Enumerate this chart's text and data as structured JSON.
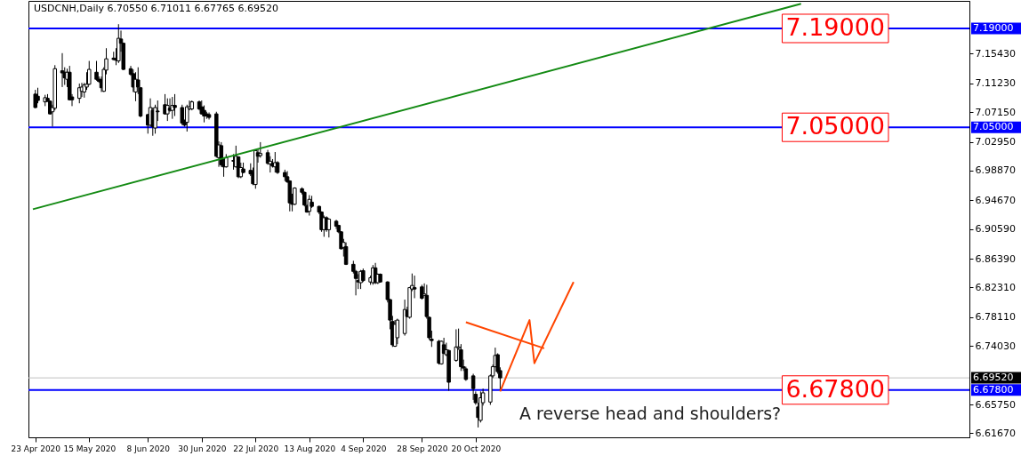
{
  "chart_data": {
    "type": "candlestick",
    "title": "USDCNH,Daily  6.70550 6.71011 6.67765 6.69520",
    "x": [
      "2020-04-23",
      "2020-04-24",
      "2020-04-27",
      "2020-04-28",
      "2020-04-29",
      "2020-04-30",
      "2020-05-01",
      "2020-05-04",
      "2020-05-05",
      "2020-05-06",
      "2020-05-07",
      "2020-05-08",
      "2020-05-11",
      "2020-05-12",
      "2020-05-13",
      "2020-05-14",
      "2020-05-15",
      "2020-05-18",
      "2020-05-19",
      "2020-05-20",
      "2020-05-21",
      "2020-05-22",
      "2020-05-25",
      "2020-05-26",
      "2020-05-27",
      "2020-05-28",
      "2020-05-29",
      "2020-06-01",
      "2020-06-02",
      "2020-06-03",
      "2020-06-04",
      "2020-06-05",
      "2020-06-08",
      "2020-06-09",
      "2020-06-10",
      "2020-06-11",
      "2020-06-12",
      "2020-06-15",
      "2020-06-16",
      "2020-06-17",
      "2020-06-18",
      "2020-06-19",
      "2020-06-22",
      "2020-06-23",
      "2020-06-24",
      "2020-06-25",
      "2020-06-26",
      "2020-06-29",
      "2020-06-30",
      "2020-07-01",
      "2020-07-02",
      "2020-07-03",
      "2020-07-06",
      "2020-07-07",
      "2020-07-08",
      "2020-07-09",
      "2020-07-10",
      "2020-07-13",
      "2020-07-14",
      "2020-07-15",
      "2020-07-16",
      "2020-07-17",
      "2020-07-20",
      "2020-07-21",
      "2020-07-22",
      "2020-07-23",
      "2020-07-24",
      "2020-07-27",
      "2020-07-28",
      "2020-07-29",
      "2020-07-30",
      "2020-07-31",
      "2020-08-03",
      "2020-08-04",
      "2020-08-05",
      "2020-08-06",
      "2020-08-07",
      "2020-08-10",
      "2020-08-11",
      "2020-08-12",
      "2020-08-13",
      "2020-08-14",
      "2020-08-17",
      "2020-08-18",
      "2020-08-19",
      "2020-08-20",
      "2020-08-21",
      "2020-08-24",
      "2020-08-25",
      "2020-08-26",
      "2020-08-27",
      "2020-08-28",
      "2020-08-31",
      "2020-09-01",
      "2020-09-02",
      "2020-09-03",
      "2020-09-04",
      "2020-09-07",
      "2020-09-08",
      "2020-09-09",
      "2020-09-10",
      "2020-09-11",
      "2020-09-14",
      "2020-09-15",
      "2020-09-16",
      "2020-09-17",
      "2020-09-18",
      "2020-09-21",
      "2020-09-22",
      "2020-09-23",
      "2020-09-24",
      "2020-09-25",
      "2020-09-28",
      "2020-09-29",
      "2020-09-30",
      "2020-10-01",
      "2020-10-02",
      "2020-10-05",
      "2020-10-06",
      "2020-10-07",
      "2020-10-08",
      "2020-10-09",
      "2020-10-12",
      "2020-10-13",
      "2020-10-14",
      "2020-10-15",
      "2020-10-16",
      "2020-10-19",
      "2020-10-20",
      "2020-10-21",
      "2020-10-22",
      "2020-10-23",
      "2020-10-26",
      "2020-10-27",
      "2020-10-28",
      "2020-10-29",
      "2020-10-30"
    ],
    "ohlc": [
      [
        7.097,
        7.103,
        7.077,
        7.078
      ],
      [
        7.094,
        7.106,
        7.084,
        7.088
      ],
      [
        7.086,
        7.096,
        7.08,
        7.092
      ],
      [
        7.091,
        7.097,
        7.086,
        7.087
      ],
      [
        7.087,
        7.088,
        7.068,
        7.069
      ],
      [
        7.072,
        7.082,
        7.051,
        7.078
      ],
      [
        7.077,
        7.138,
        7.074,
        7.133
      ],
      [
        7.13,
        7.155,
        7.107,
        7.127
      ],
      [
        7.128,
        7.135,
        7.11,
        7.12
      ],
      [
        7.118,
        7.133,
        7.107,
        7.128
      ],
      [
        7.128,
        7.137,
        7.088,
        7.089
      ],
      [
        7.093,
        7.097,
        7.08,
        7.089
      ],
      [
        7.091,
        7.112,
        7.084,
        7.106
      ],
      [
        7.101,
        7.113,
        7.093,
        7.107
      ],
      [
        7.1,
        7.113,
        7.092,
        7.11
      ],
      [
        7.107,
        7.128,
        7.103,
        7.111
      ],
      [
        7.111,
        7.144,
        7.11,
        7.132
      ],
      [
        7.128,
        7.144,
        7.116,
        7.118
      ],
      [
        7.118,
        7.122,
        7.113,
        7.115
      ],
      [
        7.118,
        7.122,
        7.1,
        7.106
      ],
      [
        7.101,
        7.135,
        7.1,
        7.132
      ],
      [
        7.131,
        7.162,
        7.125,
        7.147
      ],
      [
        7.148,
        7.157,
        7.145,
        7.146
      ],
      [
        7.147,
        7.162,
        7.138,
        7.145
      ],
      [
        7.144,
        7.196,
        7.141,
        7.176
      ],
      [
        7.175,
        7.187,
        7.157,
        7.169
      ],
      [
        7.169,
        7.17,
        7.131,
        7.132
      ],
      [
        7.133,
        7.137,
        7.123,
        7.125
      ],
      [
        7.126,
        7.132,
        7.1,
        7.107
      ],
      [
        7.1,
        7.128,
        7.087,
        7.118
      ],
      [
        7.117,
        7.135,
        7.097,
        7.107
      ],
      [
        7.106,
        7.107,
        7.064,
        7.066
      ],
      [
        7.068,
        7.069,
        7.041,
        7.053
      ],
      [
        7.053,
        7.091,
        7.051,
        7.078
      ],
      [
        7.074,
        7.078,
        7.038,
        7.051
      ],
      [
        7.049,
        7.082,
        7.041,
        7.078
      ],
      [
        7.073,
        7.088,
        7.059,
        7.072
      ],
      [
        7.082,
        7.097,
        7.068,
        7.069
      ],
      [
        7.069,
        7.091,
        7.059,
        7.081
      ],
      [
        7.077,
        7.091,
        7.072,
        7.074
      ],
      [
        7.074,
        7.093,
        7.062,
        7.081
      ],
      [
        7.081,
        7.097,
        7.066,
        7.078
      ],
      [
        7.078,
        7.082,
        7.053,
        7.056
      ],
      [
        7.059,
        7.061,
        7.051,
        7.053
      ],
      [
        7.057,
        7.082,
        7.044,
        7.079
      ],
      [
        7.076,
        7.088,
        7.074,
        7.079
      ],
      [
        7.076,
        7.088,
        7.074,
        7.086
      ],
      [
        7.086,
        7.088,
        7.074,
        7.076
      ],
      [
        7.079,
        7.088,
        7.068,
        7.069
      ],
      [
        7.074,
        7.081,
        7.057,
        7.066
      ],
      [
        7.069,
        7.072,
        7.062,
        7.066
      ],
      [
        7.068,
        7.071,
        7.061,
        7.064
      ],
      [
        7.069,
        7.072,
        7.007,
        7.009
      ],
      [
        7.007,
        7.03,
        6.994,
        7.025
      ],
      [
        7.024,
        7.029,
        6.994,
        6.997
      ],
      [
        6.997,
        7.005,
        6.98,
        6.994
      ],
      [
        6.994,
        7.012,
        6.993,
        7.007
      ],
      [
        7.003,
        7.012,
        6.99,
        7.002
      ],
      [
        6.994,
        7.024,
        6.993,
        7.009
      ],
      [
        7.008,
        7.009,
        6.978,
        6.98
      ],
      [
        6.98,
        7.0,
        6.978,
        6.993
      ],
      [
        6.991,
        7.0,
        6.985,
        6.986
      ],
      [
        6.989,
        6.999,
        6.981,
        6.984
      ],
      [
        6.986,
        6.993,
        6.968,
        6.97
      ],
      [
        6.969,
        7.018,
        6.963,
        7.017
      ],
      [
        7.014,
        7.019,
        7.0,
        7.009
      ],
      [
        7.01,
        7.029,
        7.007,
        7.013
      ],
      [
        7.014,
        7.018,
        6.997,
        6.999
      ],
      [
        6.998,
        7.009,
        6.986,
        7.002
      ],
      [
        6.999,
        7.005,
        6.993,
        6.995
      ],
      [
        6.994,
        7.015,
        6.986,
        7.0
      ],
      [
        7.0,
        7.002,
        6.984,
        6.986
      ],
      [
        6.986,
        6.99,
        6.974,
        6.98
      ],
      [
        6.98,
        6.988,
        6.971,
        6.973
      ],
      [
        6.974,
        6.975,
        6.931,
        6.943
      ],
      [
        6.943,
        6.956,
        6.931,
        6.941
      ],
      [
        6.941,
        6.965,
        6.94,
        6.964
      ],
      [
        6.963,
        6.965,
        6.955,
        6.958
      ],
      [
        6.958,
        6.959,
        6.938,
        6.94
      ],
      [
        6.939,
        6.941,
        6.929,
        6.93
      ],
      [
        6.931,
        6.954,
        6.925,
        6.948
      ],
      [
        6.944,
        6.953,
        6.936,
        6.938
      ],
      [
        6.938,
        6.939,
        6.927,
        6.93
      ],
      [
        6.93,
        6.931,
        6.902,
        6.905
      ],
      [
        6.905,
        6.925,
        6.895,
        6.922
      ],
      [
        6.922,
        6.924,
        6.902,
        6.905
      ],
      [
        6.905,
        6.921,
        6.894,
        6.92
      ],
      [
        6.917,
        6.919,
        6.906,
        6.91
      ],
      [
        6.911,
        6.912,
        6.9,
        6.902
      ],
      [
        6.902,
        6.903,
        6.877,
        6.878
      ],
      [
        6.88,
        6.892,
        6.867,
        6.887
      ],
      [
        6.881,
        6.887,
        6.855,
        6.856
      ],
      [
        6.856,
        6.861,
        6.843,
        6.846
      ],
      [
        6.846,
        6.848,
        6.812,
        6.836
      ],
      [
        6.833,
        6.842,
        6.821,
        6.831
      ],
      [
        6.83,
        6.848,
        6.821,
        6.846
      ],
      [
        6.847,
        6.85,
        6.831,
        6.833
      ],
      [
        6.831,
        6.84,
        6.827,
        6.837
      ],
      [
        6.83,
        6.855,
        6.827,
        6.851
      ],
      [
        6.851,
        6.858,
        6.828,
        6.83
      ],
      [
        6.83,
        6.843,
        6.828,
        6.842
      ],
      [
        6.842,
        6.843,
        6.83,
        6.831
      ],
      [
        6.831,
        6.832,
        6.802,
        6.806
      ],
      [
        6.806,
        6.807,
        6.764,
        6.777
      ],
      [
        6.775,
        6.783,
        6.739,
        6.742
      ],
      [
        6.74,
        6.777,
        6.739,
        6.771
      ],
      [
        6.752,
        6.779,
        6.743,
        6.777
      ],
      [
        6.758,
        6.806,
        6.755,
        6.792
      ],
      [
        6.791,
        6.796,
        6.781,
        6.782
      ],
      [
        6.781,
        6.824,
        6.779,
        6.823
      ],
      [
        6.821,
        6.843,
        6.818,
        6.826
      ],
      [
        6.823,
        6.84,
        6.808,
        6.821
      ],
      [
        6.824,
        6.827,
        6.806,
        6.808
      ],
      [
        6.812,
        6.829,
        6.811,
        6.814
      ],
      [
        6.812,
        6.827,
        6.779,
        6.782
      ],
      [
        6.781,
        6.782,
        6.749,
        6.752
      ],
      [
        6.75,
        6.762,
        6.739,
        6.748
      ],
      [
        6.747,
        6.749,
        6.714,
        6.716
      ],
      [
        6.715,
        6.748,
        6.714,
        6.747
      ],
      [
        6.742,
        6.752,
        6.729,
        6.73
      ],
      [
        6.728,
        6.745,
        6.726,
        6.735
      ],
      [
        6.734,
        6.735,
        6.677,
        6.689
      ],
      [
        6.72,
        6.764,
        6.718,
        6.739
      ],
      [
        6.737,
        6.765,
        6.735,
        6.739
      ],
      [
        6.735,
        6.743,
        6.705,
        6.711
      ],
      [
        6.711,
        6.721,
        6.705,
        6.709
      ],
      [
        6.708,
        6.711,
        6.691,
        6.693
      ],
      [
        6.698,
        6.701,
        6.664,
        6.68
      ],
      [
        6.672,
        6.676,
        6.657,
        6.66
      ],
      [
        6.654,
        6.66,
        6.625,
        6.639
      ],
      [
        6.635,
        6.676,
        6.632,
        6.667
      ],
      [
        6.66,
        6.68,
        6.656,
        6.674
      ],
      [
        6.661,
        6.7,
        6.657,
        6.698
      ],
      [
        6.698,
        6.714,
        6.695,
        6.711
      ],
      [
        6.711,
        6.738,
        6.71,
        6.727
      ],
      [
        6.728,
        6.73,
        6.701,
        6.704
      ],
      [
        6.7055,
        6.71011,
        6.67765,
        6.6952
      ]
    ],
    "series": [
      {
        "type": "line",
        "color": "#138a13",
        "x": [
          "2020-04-22",
          "2021-03-02"
        ],
        "values": [
          6.934,
          7.225
        ]
      },
      {
        "type": "line",
        "color": "#ff4500",
        "x": [
          "2020-10-16",
          "2020-11-17"
        ],
        "values": [
          6.774,
          6.737
        ]
      },
      {
        "type": "line",
        "color": "#ff4500",
        "x": [
          "2020-10-30",
          "2020-11-11",
          "2020-11-13",
          "2020-11-29"
        ],
        "values": [
          6.676,
          6.777,
          6.716,
          6.831
        ]
      }
    ],
    "ref_lines": [
      {
        "axis": "y",
        "value": 7.19,
        "label": "7.19000",
        "color": "#0000ff"
      },
      {
        "axis": "y",
        "value": 7.05,
        "label": "7.05000",
        "color": "#0000ff"
      },
      {
        "axis": "y",
        "value": 6.678,
        "label": "6.67800",
        "color": "#0000ff"
      },
      {
        "axis": "y",
        "value": 6.6952,
        "label": "6.69520",
        "color": "#c0c0c0"
      }
    ],
    "annotations": [
      {
        "text": "7.19000",
        "x": "2021-03-16",
        "y": 7.19
      },
      {
        "text": "7.05000",
        "x": "2021-03-16",
        "y": 7.05
      },
      {
        "text": "6.67800",
        "x": "2021-03-16",
        "y": 6.678
      },
      "A reverse head and shoulders?"
    ],
    "xlim": [
      "2020-04-22",
      "2021-05-08"
    ],
    "xticks": [
      {
        "value": "2020-04-23",
        "label": "23 Apr 2020"
      },
      {
        "value": "2020-05-15",
        "label": "15 May 2020"
      },
      {
        "value": "2020-06-08",
        "label": "8 Jun 2020"
      },
      {
        "value": "2020-06-30",
        "label": "30 Jun 2020"
      },
      {
        "value": "2020-07-22",
        "label": "22 Jul 2020"
      },
      {
        "value": "2020-08-13",
        "label": "13 Aug 2020"
      },
      {
        "value": "2020-09-04",
        "label": "4 Sep 2020"
      },
      {
        "value": "2020-09-28",
        "label": "28 Sep 2020"
      },
      {
        "value": "2020-10-20",
        "label": "20 Oct 2020"
      }
    ],
    "ylim": [
      6.611,
      7.229
    ],
    "yticks": [
      {
        "value": 7.1543,
        "label": "7.15430"
      },
      {
        "value": 7.1123,
        "label": "7.11230"
      },
      {
        "value": 7.0715,
        "label": "7.07150"
      },
      {
        "value": 7.0295,
        "label": "7.02950"
      },
      {
        "value": 6.9887,
        "label": "6.98870"
      },
      {
        "value": 6.9467,
        "label": "6.94670"
      },
      {
        "value": 6.9059,
        "label": "6.90590"
      },
      {
        "value": 6.8639,
        "label": "6.86390"
      },
      {
        "value": 6.8231,
        "label": "6.82310"
      },
      {
        "value": 6.7811,
        "label": "6.78110"
      },
      {
        "value": 6.7403,
        "label": "6.74030"
      },
      {
        "value": 6.6575,
        "label": "6.65750"
      },
      {
        "value": 6.6167,
        "label": "6.61670"
      }
    ],
    "grid": false
  }
}
